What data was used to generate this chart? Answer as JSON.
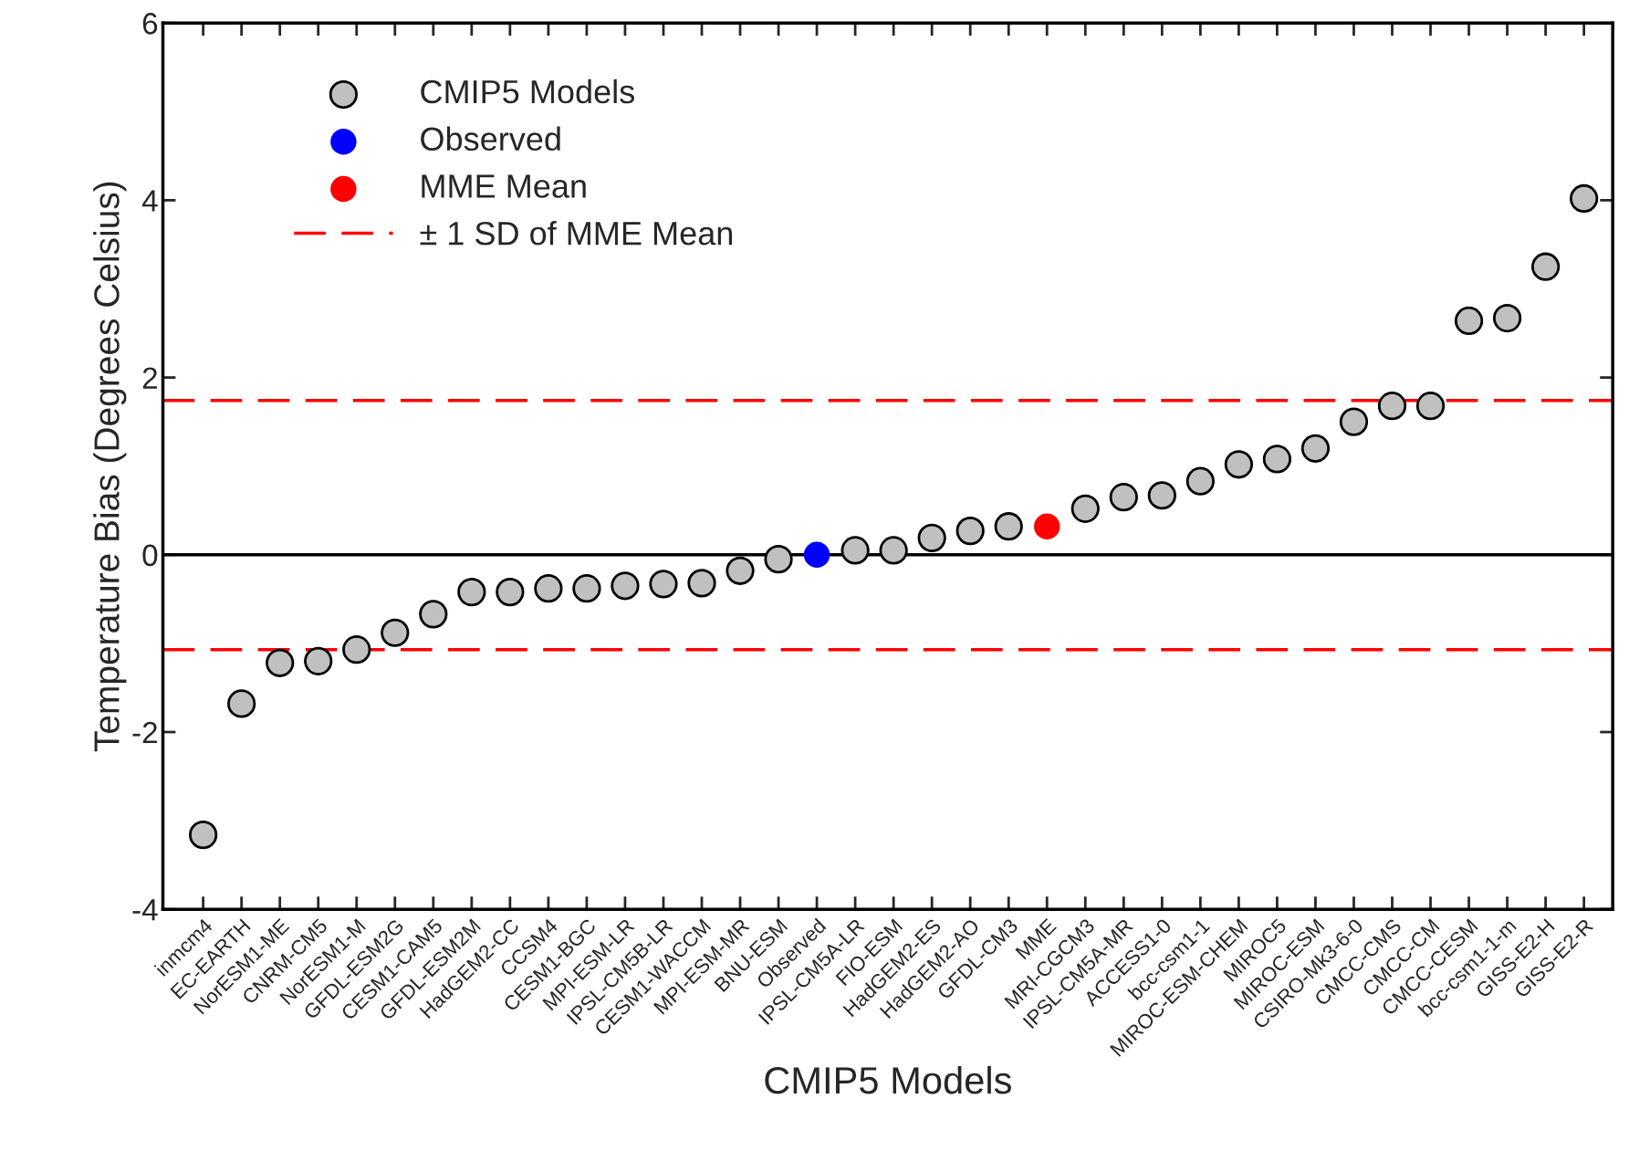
{
  "chart_data": {
    "type": "scatter",
    "xlabel": "CMIP5 Models",
    "ylabel": "Temperature Bias (Degrees Celsius)",
    "categories": [
      "inmcm4",
      "EC-EARTH",
      "NorESM1-ME",
      "CNRM-CM5",
      "NorESM1-M",
      "GFDL-ESM2G",
      "CESM1-CAM5",
      "GFDL-ESM2M",
      "HadGEM2-CC",
      "CCSM4",
      "CESM1-BGC",
      "MPI-ESM-LR",
      "IPSL-CM5B-LR",
      "CESM1-WACCM",
      "MPI-ESM-MR",
      "BNU-ESM",
      "Observed",
      "IPSL-CM5A-LR",
      "FIO-ESM",
      "HadGEM2-ES",
      "HadGEM2-AO",
      "GFDL-CM3",
      "MME",
      "MRI-CGCM3",
      "IPSL-CM5A-MR",
      "ACCESS1-0",
      "bcc-csm1-1",
      "MIROC-ESM-CHEM",
      "MIROC5",
      "MIROC-ESM",
      "CSIRO-Mk3-6-0",
      "CMCC-CMS",
      "CMCC-CM",
      "CMCC-CESM",
      "bcc-csm1-1-m",
      "GISS-E2-H",
      "GISS-E2-R"
    ],
    "series": [
      {
        "name": "CMIP5 Models",
        "color": "#c0c0c0",
        "values": [
          -3.16,
          -1.68,
          -1.22,
          -1.2,
          -1.07,
          -0.88,
          -0.67,
          -0.42,
          -0.42,
          -0.38,
          -0.38,
          -0.35,
          -0.33,
          -0.32,
          -0.18,
          -0.05,
          null,
          0.05,
          0.05,
          0.19,
          0.27,
          0.32,
          null,
          0.52,
          0.65,
          0.67,
          0.83,
          1.02,
          1.08,
          1.2,
          1.5,
          1.68,
          1.68,
          2.64,
          2.67,
          3.25,
          4.02
        ]
      },
      {
        "name": "Observed",
        "color": "#0000ff",
        "values": [
          null,
          null,
          null,
          null,
          null,
          null,
          null,
          null,
          null,
          null,
          null,
          null,
          null,
          null,
          null,
          null,
          0,
          null,
          null,
          null,
          null,
          null,
          null,
          null,
          null,
          null,
          null,
          null,
          null,
          null,
          null,
          null,
          null,
          null,
          null,
          null,
          null
        ]
      },
      {
        "name": "MME Mean",
        "color": "#ff0000",
        "values": [
          null,
          null,
          null,
          null,
          null,
          null,
          null,
          null,
          null,
          null,
          null,
          null,
          null,
          null,
          null,
          null,
          null,
          null,
          null,
          null,
          null,
          null,
          0.32,
          null,
          null,
          null,
          null,
          null,
          null,
          null,
          null,
          null,
          null,
          null,
          null,
          null,
          null
        ]
      }
    ],
    "ref_lines": [
      {
        "axis": "y",
        "value": 1.74,
        "label": "± 1 SD of MME Mean",
        "color": "#ff0000",
        "line_style": "dashed"
      },
      {
        "axis": "y",
        "value": -1.07,
        "color": "#ff0000",
        "line_style": "dashed"
      },
      {
        "axis": "y",
        "value": 0,
        "color": "#000000",
        "line_style": "solid"
      }
    ],
    "ylim": [
      -4,
      6
    ],
    "yticks": [
      -4,
      -2,
      0,
      2,
      4,
      6
    ],
    "marker": "circle",
    "legend": "top left",
    "grid": false
  }
}
